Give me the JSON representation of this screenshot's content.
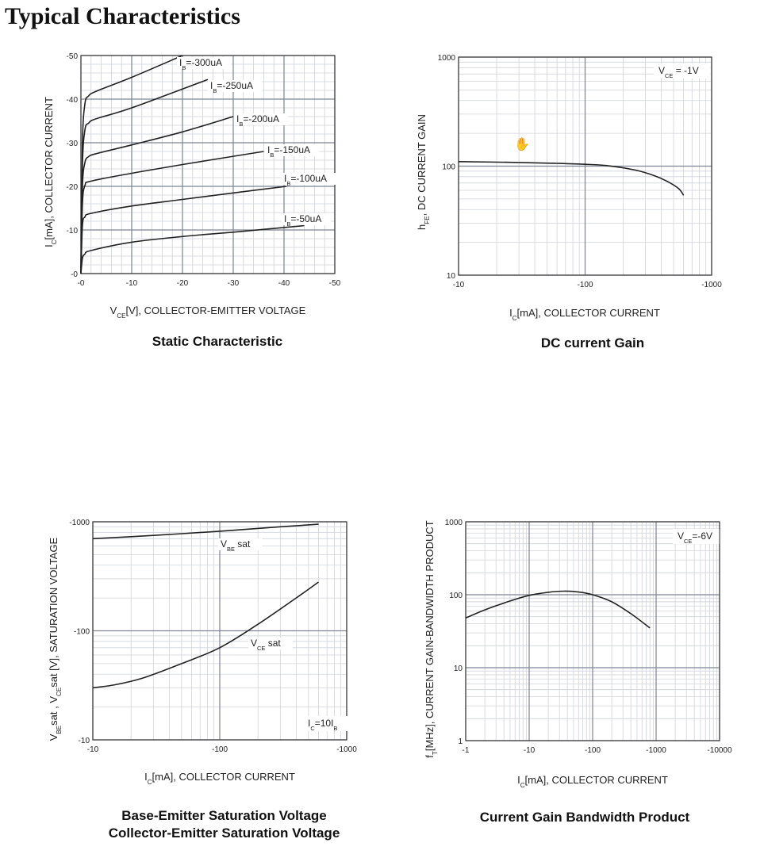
{
  "page": {
    "title": "Typical Characteristics"
  },
  "chart_data": [
    {
      "id": "static",
      "type": "line",
      "title": "Static Characteristic",
      "xlabel": "V|CE|[V], COLLECTOR-EMITTER VOLTAGE",
      "ylabel": "I|C|[mA], COLLECTOR CURRENT",
      "x_scale": "linear",
      "y_scale": "linear",
      "xlim": [
        0,
        -50
      ],
      "ylim": [
        0,
        -50
      ],
      "x_ticks": [
        0,
        -10,
        -20,
        -30,
        -40,
        -50
      ],
      "y_ticks": [
        0,
        -10,
        -20,
        -30,
        -40,
        -50
      ],
      "x_tick_labels": [
        "-0",
        "-10",
        "-20",
        "-30",
        "-40",
        "-50"
      ],
      "y_tick_labels": [
        "-0",
        "-10",
        "-20",
        "-30",
        "-40",
        "-50"
      ],
      "grid": true,
      "series": [
        {
          "name": "I|B|=-50uA",
          "x": [
            0,
            -0.3,
            -0.8,
            -2,
            -10,
            -20,
            -30,
            -44
          ],
          "y": [
            0,
            -3.5,
            -4.5,
            -5.3,
            -7.2,
            -8.5,
            -9.5,
            -11
          ]
        },
        {
          "name": "I|B|=-100uA",
          "x": [
            0,
            -0.3,
            -0.8,
            -2,
            -10,
            -20,
            -30,
            -40.5
          ],
          "y": [
            0,
            -11,
            -13,
            -13.8,
            -15.5,
            -17,
            -18.5,
            -20
          ]
        },
        {
          "name": "I|B|=-150uA",
          "x": [
            0,
            -0.3,
            -0.8,
            -2,
            -10,
            -20,
            -36
          ],
          "y": [
            0,
            -16,
            -20.2,
            -21.2,
            -23,
            -25,
            -28
          ]
        },
        {
          "name": "I|B|=-200uA",
          "x": [
            0,
            -0.3,
            -0.8,
            -1.5,
            -3,
            -10,
            -20,
            -30
          ],
          "y": [
            0,
            -20,
            -25.5,
            -26.8,
            -27.5,
            -29.5,
            -32.5,
            -36
          ]
        },
        {
          "name": "I|B|=-250uA",
          "x": [
            0,
            -0.3,
            -0.8,
            -1.5,
            -3,
            -10,
            -25
          ],
          "y": [
            0,
            -25,
            -33,
            -34.5,
            -35.5,
            -38,
            -44.5
          ]
        },
        {
          "name": "I|B|=-300uA",
          "x": [
            0,
            -0.3,
            -0.8,
            -1.5,
            -3,
            -10,
            -20
          ],
          "y": [
            0,
            -30,
            -39,
            -40.7,
            -41.8,
            -45,
            -50
          ]
        }
      ]
    },
    {
      "id": "gain",
      "type": "line",
      "title": "DC current Gain",
      "xlabel": "I|C|[mA], COLLECTOR CURRENT",
      "ylabel": "h|FE|, DC CURRENT GAIN",
      "x_scale": "log",
      "y_scale": "log",
      "xlim": [
        -10,
        -1000
      ],
      "ylim": [
        10,
        1000
      ],
      "x_ticks": [
        -10,
        -100,
        -1000
      ],
      "y_ticks": [
        10,
        100,
        1000
      ],
      "x_tick_labels": [
        "-10",
        "-100",
        "-1000"
      ],
      "y_tick_labels": [
        "10",
        "100",
        "1000"
      ],
      "grid": true,
      "annotation": "V|CE| = -1V",
      "series": [
        {
          "name": "",
          "x": [
            -10,
            -30,
            -60,
            -100,
            -150,
            -250,
            -350,
            -450,
            -550,
            -600
          ],
          "y": [
            110,
            108,
            106,
            104,
            101,
            92,
            82,
            72,
            62,
            54
          ]
        }
      ]
    },
    {
      "id": "saturation",
      "type": "line",
      "title": "Base-Emitter Saturation Voltage",
      "subtitle": "Collector-Emitter Saturation Voltage",
      "xlabel": "I|C|[mA], COLLECTOR CURRENT",
      "ylabel": "V|BE|sat , V|CE|sat [V], SATURATION VOLTAGE",
      "x_scale": "log",
      "y_scale": "log",
      "xlim": [
        -10,
        -1000
      ],
      "ylim": [
        -10,
        -1000
      ],
      "x_ticks": [
        -10,
        -100,
        -1000
      ],
      "y_ticks": [
        -10,
        -100,
        -1000
      ],
      "x_tick_labels": [
        "-10",
        "-100",
        "-1000"
      ],
      "y_tick_labels": [
        "-10",
        "-100",
        "-1000"
      ],
      "grid": true,
      "annotation": "I|C|=10I|B|",
      "series": [
        {
          "name": "V|BE| sat",
          "x": [
            -10,
            -30,
            -100,
            -300,
            -600
          ],
          "y": [
            -700,
            -750,
            -820,
            -900,
            -950
          ]
        },
        {
          "name": "V|CE| sat",
          "x": [
            -10,
            -15,
            -25,
            -50,
            -100,
            -200,
            -400,
            -600
          ],
          "y": [
            -30,
            -32,
            -37,
            -50,
            -70,
            -115,
            -200,
            -280
          ]
        }
      ]
    },
    {
      "id": "ft",
      "type": "line",
      "title": "Current Gain Bandwidth Product",
      "xlabel": "I|C|[mA], COLLECTOR CURRENT",
      "ylabel": "f|T|[MHz], CURRENT GAIN-BANDWIDTH PRODUCT",
      "x_scale": "log",
      "y_scale": "log",
      "xlim": [
        -1,
        -10000
      ],
      "ylim": [
        1,
        1000
      ],
      "x_ticks": [
        -1,
        -10,
        -100,
        -1000,
        -10000
      ],
      "y_ticks": [
        1,
        10,
        100,
        1000
      ],
      "x_tick_labels": [
        "-1",
        "-10",
        "-100",
        "-1000",
        "-10000"
      ],
      "y_tick_labels": [
        "1",
        "10",
        "100",
        "1000"
      ],
      "grid": true,
      "annotation": "V|CE|=-6V",
      "series": [
        {
          "name": "",
          "x": [
            -1,
            -2,
            -5,
            -10,
            -20,
            -35,
            -60,
            -100,
            -200,
            -400,
            -800
          ],
          "y": [
            48,
            62,
            82,
            98,
            108,
            112,
            109,
            100,
            80,
            55,
            35
          ]
        }
      ]
    }
  ]
}
